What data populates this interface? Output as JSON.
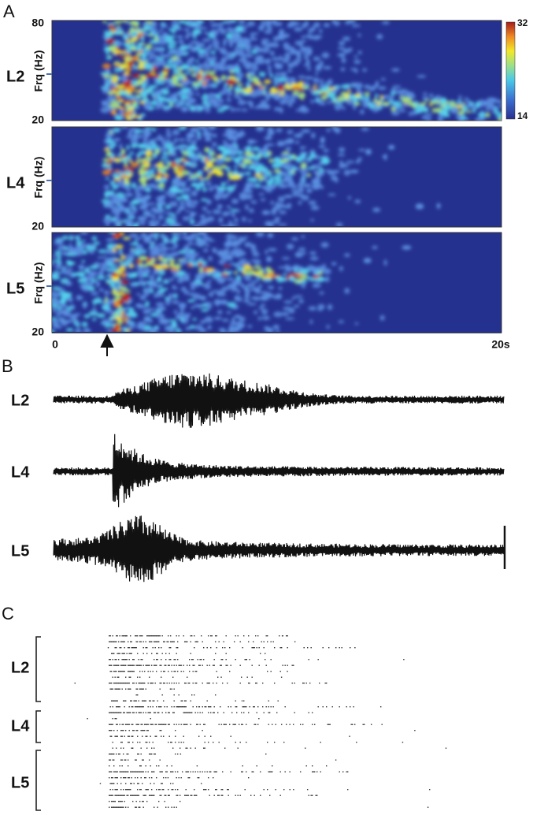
{
  "panels": {
    "A": {
      "label": "A",
      "spectrograms": [
        {
          "layer": "L2",
          "ylabel": "Frq (Hz)",
          "ytop": 80,
          "ybottom": 20
        },
        {
          "layer": "L4",
          "ylabel": "Frq (Hz)",
          "ybottom": 20
        },
        {
          "layer": "L5",
          "ylabel": "Frq (Hz)",
          "ybottom": 20
        }
      ],
      "colorbar": {
        "max": 32,
        "min": 14
      },
      "xaxis": {
        "start": 0,
        "end": "20s"
      }
    },
    "B": {
      "label": "B",
      "traces": [
        "L2",
        "L4",
        "L5"
      ]
    },
    "C": {
      "label": "C",
      "groups": [
        "L2",
        "L4",
        "L5"
      ]
    }
  }
}
